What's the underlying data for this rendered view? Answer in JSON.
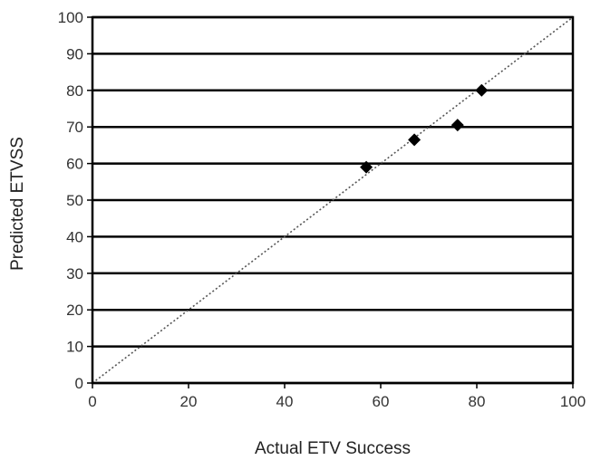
{
  "chart_data": {
    "type": "scatter",
    "title": "",
    "xlabel": "Actual ETV Success",
    "ylabel": "Predicted ETVSS",
    "xlim": [
      0,
      100
    ],
    "ylim": [
      0,
      100
    ],
    "x_ticks": [
      "0",
      "20",
      "40",
      "60",
      "80",
      "100"
    ],
    "y_ticks": [
      "0",
      "10",
      "20",
      "30",
      "40",
      "50",
      "60",
      "70",
      "80",
      "90",
      "100"
    ],
    "grid": "horizontal",
    "legend": "none",
    "reference_line": {
      "type": "identity",
      "style": "dotted"
    },
    "series": [
      {
        "marker": "diamond",
        "points": [
          {
            "x": 57,
            "y": 59
          },
          {
            "x": 67,
            "y": 66.5
          },
          {
            "x": 76,
            "y": 70.5
          },
          {
            "x": 81,
            "y": 80
          }
        ]
      }
    ],
    "colors": {
      "marker": "#000000",
      "grid": "#000000",
      "reference": "#555555"
    }
  }
}
